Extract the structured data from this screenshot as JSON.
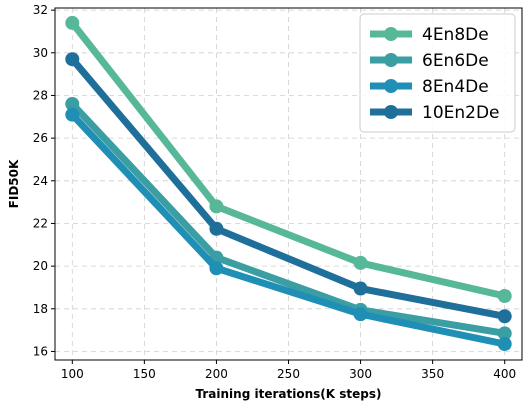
{
  "chart_data": {
    "type": "line",
    "x": [
      100,
      200,
      300,
      400
    ],
    "series": [
      {
        "name": "4En8De",
        "values": [
          31.4,
          22.8,
          20.15,
          18.6
        ],
        "color": "#56b898"
      },
      {
        "name": "6En6De",
        "values": [
          27.6,
          20.4,
          17.95,
          16.85
        ],
        "color": "#3a9ea3"
      },
      {
        "name": "8En4De",
        "values": [
          27.1,
          19.9,
          17.75,
          16.35
        ],
        "color": "#1f8fb5"
      },
      {
        "name": "10En2De",
        "values": [
          29.7,
          21.75,
          18.95,
          17.65
        ],
        "color": "#1f6f9b"
      }
    ],
    "xlabel": "Training iterations(K steps)",
    "ylabel": "FID50K",
    "xlim": [
      88,
      412
    ],
    "ylim": [
      15.6,
      32.1
    ],
    "xticks": [
      100,
      150,
      200,
      250,
      300,
      350,
      400
    ],
    "yticks": [
      16,
      18,
      20,
      22,
      24,
      26,
      28,
      30,
      32
    ],
    "grid": true,
    "legend": "top-right"
  }
}
